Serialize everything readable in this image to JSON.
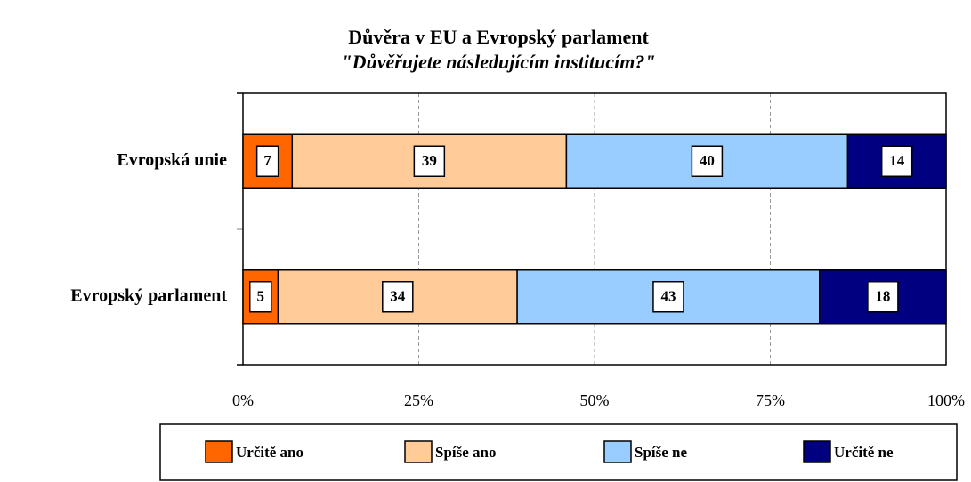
{
  "chart_data": {
    "type": "stacked_barh",
    "title": "Důvěra v EU a Evropský parlament",
    "subtitle": "\"Důvěřujete následujícím institucím?\"",
    "categories": [
      "Evropská unie",
      "Evropský parlament"
    ],
    "series": [
      {
        "name": "Určitě ano",
        "color": "#ff6600",
        "values": [
          7,
          5
        ]
      },
      {
        "name": "Spíše ano",
        "color": "#ffcc99",
        "values": [
          39,
          34
        ]
      },
      {
        "name": "Spíše ne",
        "color": "#99ccff",
        "values": [
          40,
          43
        ]
      },
      {
        "name": "Určitě ne",
        "color": "#000080",
        "values": [
          14,
          18
        ]
      }
    ],
    "xlim": [
      0,
      100
    ],
    "xticks": [
      {
        "value": 0,
        "label": "0%"
      },
      {
        "value": 25,
        "label": "25%"
      },
      {
        "value": 50,
        "label": "50%"
      },
      {
        "value": 75,
        "label": "75%"
      },
      {
        "value": 100,
        "label": "100%"
      }
    ],
    "grid": true,
    "legend": "bottom"
  }
}
